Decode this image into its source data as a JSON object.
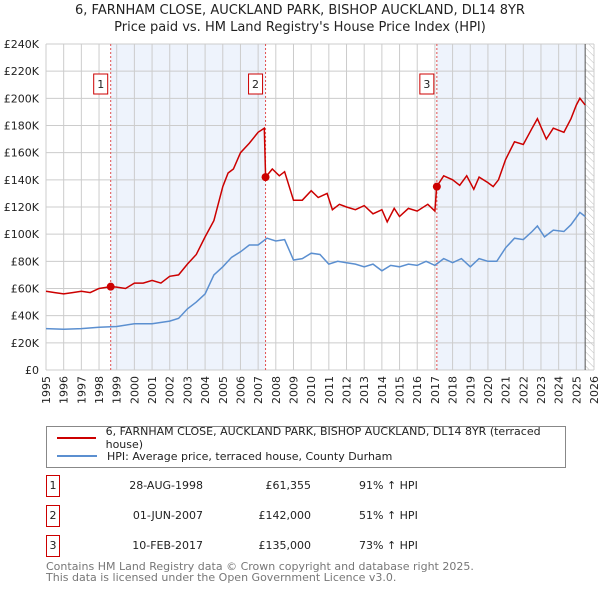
{
  "chart_data": {
    "type": "line",
    "title": "6, FARNHAM CLOSE, AUCKLAND PARK, BISHOP AUCKLAND, DL14 8YR",
    "subtitle": "Price paid vs. HM Land Registry's House Price Index (HPI)",
    "xlim": [
      1995,
      2026
    ],
    "ylim": [
      0,
      240000
    ],
    "x_ticks": [
      "1995",
      "1996",
      "1997",
      "1998",
      "1999",
      "2000",
      "2001",
      "2002",
      "2003",
      "2004",
      "2005",
      "2006",
      "2007",
      "2008",
      "2009",
      "2010",
      "2011",
      "2012",
      "2013",
      "2014",
      "2015",
      "2016",
      "2017",
      "2018",
      "2019",
      "2020",
      "2021",
      "2022",
      "2023",
      "2024",
      "2025",
      "2026"
    ],
    "y_ticks": [
      {
        "v": 0,
        "label": "£0"
      },
      {
        "v": 20000,
        "label": "£20K"
      },
      {
        "v": 40000,
        "label": "£40K"
      },
      {
        "v": 60000,
        "label": "£60K"
      },
      {
        "v": 80000,
        "label": "£80K"
      },
      {
        "v": 100000,
        "label": "£100K"
      },
      {
        "v": 120000,
        "label": "£120K"
      },
      {
        "v": 140000,
        "label": "£140K"
      },
      {
        "v": 160000,
        "label": "£160K"
      },
      {
        "v": 180000,
        "label": "£180K"
      },
      {
        "v": 200000,
        "label": "£200K"
      },
      {
        "v": 220000,
        "label": "£220K"
      },
      {
        "v": 240000,
        "label": "£240K"
      }
    ],
    "grid": true,
    "data_end": 2025.5,
    "series": [
      {
        "name": "6, FARNHAM CLOSE, AUCKLAND PARK, BISHOP AUCKLAND, DL14 8YR (terraced house)",
        "color": "#cc0000",
        "points": [
          [
            1995,
            58
          ],
          [
            1995.5,
            57
          ],
          [
            1996,
            56
          ],
          [
            1996.5,
            57
          ],
          [
            1997,
            58
          ],
          [
            1997.5,
            57
          ],
          [
            1998,
            60
          ],
          [
            1998.66,
            61.4
          ],
          [
            1999,
            61
          ],
          [
            1999.5,
            60
          ],
          [
            2000,
            64
          ],
          [
            2000.5,
            64
          ],
          [
            2001,
            66
          ],
          [
            2001.5,
            64
          ],
          [
            2002,
            69
          ],
          [
            2002.5,
            70
          ],
          [
            2003,
            78
          ],
          [
            2003.5,
            85
          ],
          [
            2004,
            98
          ],
          [
            2004.5,
            110
          ],
          [
            2005,
            135
          ],
          [
            2005.3,
            145
          ],
          [
            2005.6,
            148
          ],
          [
            2006,
            160
          ],
          [
            2006.5,
            167
          ],
          [
            2007,
            175
          ],
          [
            2007.35,
            178
          ],
          [
            2007.42,
            142
          ],
          [
            2007.8,
            148
          ],
          [
            2008.2,
            143
          ],
          [
            2008.5,
            146
          ],
          [
            2009,
            125
          ],
          [
            2009.5,
            125
          ],
          [
            2010,
            132
          ],
          [
            2010.4,
            127
          ],
          [
            2010.9,
            130
          ],
          [
            2011.2,
            118
          ],
          [
            2011.6,
            122
          ],
          [
            2012,
            120
          ],
          [
            2012.5,
            118
          ],
          [
            2013,
            121
          ],
          [
            2013.5,
            115
          ],
          [
            2014,
            118
          ],
          [
            2014.3,
            109
          ],
          [
            2014.7,
            119
          ],
          [
            2015,
            113
          ],
          [
            2015.5,
            119
          ],
          [
            2016,
            117
          ],
          [
            2016.6,
            122
          ],
          [
            2017.0,
            117
          ],
          [
            2017.1,
            135
          ],
          [
            2017.5,
            143
          ],
          [
            2018,
            140
          ],
          [
            2018.4,
            136
          ],
          [
            2018.8,
            143
          ],
          [
            2019.2,
            133
          ],
          [
            2019.5,
            142
          ],
          [
            2020,
            138
          ],
          [
            2020.3,
            135
          ],
          [
            2020.6,
            140
          ],
          [
            2021,
            155
          ],
          [
            2021.5,
            168
          ],
          [
            2022,
            166
          ],
          [
            2022.5,
            178
          ],
          [
            2022.8,
            185
          ],
          [
            2023.3,
            170
          ],
          [
            2023.7,
            178
          ],
          [
            2024.3,
            175
          ],
          [
            2024.7,
            185
          ],
          [
            2025.0,
            195
          ],
          [
            2025.2,
            200
          ],
          [
            2025.5,
            195
          ]
        ]
      },
      {
        "name": "HPI: Average price, terraced house, County Durham",
        "color": "#5b8fd0",
        "points": [
          [
            1995,
            30.5
          ],
          [
            1996,
            30
          ],
          [
            1997,
            30.5
          ],
          [
            1998,
            31.5
          ],
          [
            1999,
            32
          ],
          [
            2000,
            34
          ],
          [
            2001,
            34
          ],
          [
            2002,
            36
          ],
          [
            2002.5,
            38
          ],
          [
            2003,
            45
          ],
          [
            2003.5,
            50
          ],
          [
            2004,
            56
          ],
          [
            2004.5,
            70
          ],
          [
            2005,
            76
          ],
          [
            2005.5,
            83
          ],
          [
            2006,
            87
          ],
          [
            2006.5,
            92
          ],
          [
            2007,
            92
          ],
          [
            2007.5,
            97
          ],
          [
            2008,
            95
          ],
          [
            2008.5,
            96
          ],
          [
            2009,
            81
          ],
          [
            2009.5,
            82
          ],
          [
            2010,
            86
          ],
          [
            2010.5,
            85
          ],
          [
            2011,
            78
          ],
          [
            2011.5,
            80
          ],
          [
            2012,
            79
          ],
          [
            2012.5,
            78
          ],
          [
            2013,
            76
          ],
          [
            2013.5,
            78
          ],
          [
            2014,
            73
          ],
          [
            2014.5,
            77
          ],
          [
            2015,
            76
          ],
          [
            2015.5,
            78
          ],
          [
            2016,
            77
          ],
          [
            2016.5,
            80
          ],
          [
            2017,
            77
          ],
          [
            2017.5,
            82
          ],
          [
            2018,
            79
          ],
          [
            2018.5,
            82
          ],
          [
            2019,
            76
          ],
          [
            2019.5,
            82
          ],
          [
            2020,
            80
          ],
          [
            2020.5,
            80
          ],
          [
            2021,
            90
          ],
          [
            2021.5,
            97
          ],
          [
            2022,
            96
          ],
          [
            2022.5,
            102
          ],
          [
            2022.8,
            106
          ],
          [
            2023.2,
            98
          ],
          [
            2023.7,
            103
          ],
          [
            2024.3,
            102
          ],
          [
            2024.7,
            107
          ],
          [
            2025.2,
            116
          ],
          [
            2025.5,
            113
          ]
        ]
      }
    ],
    "points_unit": "thousands GBP",
    "sales": [
      {
        "n": "1",
        "x": 1998.66,
        "y": 61355,
        "date": "28-AUG-1998",
        "price": "£61,355",
        "hpi": "91% ↑ HPI"
      },
      {
        "n": "2",
        "x": 2007.42,
        "y": 142000,
        "date": "01-JUN-2007",
        "price": "£142,000",
        "hpi": "51% ↑ HPI"
      },
      {
        "n": "3",
        "x": 2017.11,
        "y": 135000,
        "date": "10-FEB-2017",
        "price": "£135,000",
        "hpi": "73% ↑ HPI"
      }
    ]
  },
  "footer": [
    "Contains HM Land Registry data © Crown copyright and database right 2025.",
    "This data is licensed under the Open Government Licence v3.0."
  ]
}
